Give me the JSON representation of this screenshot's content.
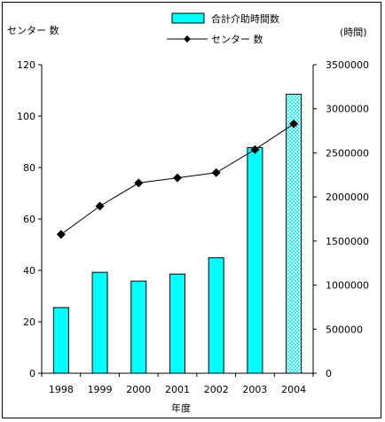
{
  "chart_data": {
    "type": "bar+line",
    "categories": [
      "1998",
      "1999",
      "2000",
      "2001",
      "2002",
      "2003",
      "2004"
    ],
    "xlabel": "年度",
    "y_left_label": "センター 数",
    "y_right_label": "(時間)",
    "y_left_lim": [
      0,
      120
    ],
    "y_left_ticks": [
      0,
      20,
      40,
      60,
      80,
      100,
      120
    ],
    "y_right_lim": [
      0,
      3500000
    ],
    "y_right_ticks": [
      0,
      500000,
      1000000,
      1500000,
      2000000,
      2500000,
      3000000,
      3500000
    ],
    "legend_position": "top-right",
    "bar_series": {
      "name": "合計介助時間数",
      "axis": "right",
      "color": "#00ffff",
      "values": [
        745000,
        1145000,
        1045000,
        1125000,
        1310000,
        2560000,
        3165000
      ],
      "hatched_index": 6
    },
    "line_series": {
      "name": "センター 数",
      "axis": "left",
      "marker": "diamond",
      "color": "#000000",
      "values": [
        54,
        65,
        74,
        76,
        78,
        87,
        97
      ]
    }
  }
}
